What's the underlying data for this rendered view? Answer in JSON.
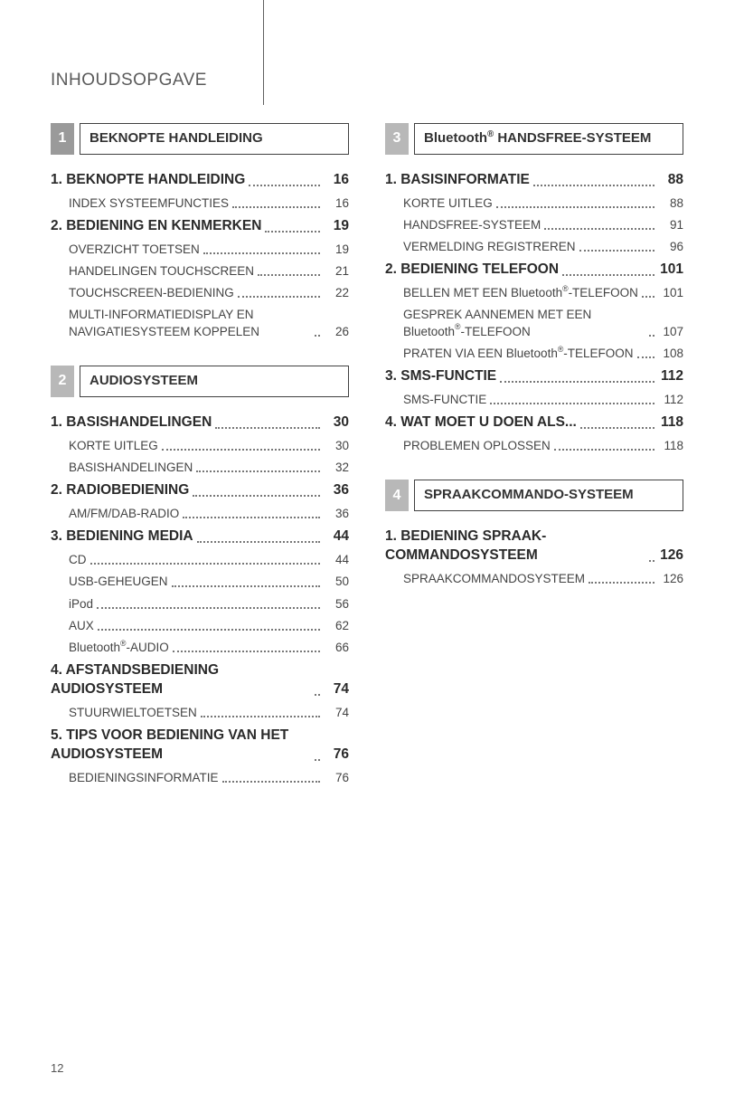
{
  "page_title": "INHOUDSOPGAVE",
  "page_number": "12",
  "left": {
    "s1": {
      "num": "1",
      "title": "BEKNOPTE HANDLEIDING",
      "items": [
        {
          "label": "1. BEKNOPTE HANDLEIDING",
          "page": "16",
          "bold": true
        },
        {
          "label": "INDEX SYSTEEMFUNCTIES",
          "page": "16"
        },
        {
          "label": "2. BEDIENING EN KENMERKEN",
          "page": "19",
          "bold": true
        },
        {
          "label": "OVERZICHT TOETSEN",
          "page": "19"
        },
        {
          "label": "HANDELINGEN TOUCHSCREEN",
          "page": "21"
        },
        {
          "label": "TOUCHSCREEN-BEDIENING",
          "page": "22"
        },
        {
          "label": "MULTI-INFORMATIEDISPLAY EN NAVIGATIESYSTEEM KOPPELEN",
          "page": "26",
          "wrap": true
        }
      ]
    },
    "s2": {
      "num": "2",
      "title": "AUDIOSYSTEEM",
      "items": [
        {
          "label": "1. BASISHANDELINGEN",
          "page": "30",
          "bold": true
        },
        {
          "label": "KORTE UITLEG",
          "page": "30"
        },
        {
          "label": "BASISHANDELINGEN",
          "page": "32"
        },
        {
          "label": "2. RADIOBEDIENING",
          "page": "36",
          "bold": true
        },
        {
          "label": "AM/FM/DAB-RADIO",
          "page": "36"
        },
        {
          "label": "3. BEDIENING MEDIA",
          "page": "44",
          "bold": true
        },
        {
          "label": "CD",
          "page": "44"
        },
        {
          "label": "USB-GEHEUGEN",
          "page": "50"
        },
        {
          "label": "iPod",
          "page": "56"
        },
        {
          "label": "AUX",
          "page": "62"
        },
        {
          "label": "Bluetooth®-AUDIO",
          "page": "66",
          "reg": true
        },
        {
          "label": "4. AFSTANDSBEDIENING AUDIOSYSTEEM",
          "page": "74",
          "bold": true,
          "wrap": true
        },
        {
          "label": "STUURWIELTOETSEN",
          "page": "74"
        },
        {
          "label": "5. TIPS VOOR BEDIENING VAN HET AUDIOSYSTEEM",
          "page": "76",
          "bold": true,
          "wrap": true
        },
        {
          "label": "BEDIENINGSINFORMATIE",
          "page": "76"
        }
      ]
    }
  },
  "right": {
    "s3": {
      "num": "3",
      "title_pre": "Bluetooth",
      "title_post": " HANDSFREE-SYSTEEM",
      "items": [
        {
          "label": "1. BASISINFORMATIE",
          "page": "88",
          "bold": true
        },
        {
          "label": "KORTE UITLEG",
          "page": "88"
        },
        {
          "label": "HANDSFREE-SYSTEEM",
          "page": "91"
        },
        {
          "label": "VERMELDING REGISTREREN",
          "page": "96"
        },
        {
          "label": "2. BEDIENING TELEFOON",
          "page": "101",
          "bold": true
        },
        {
          "label": "BELLEN MET EEN Bluetooth®-TELEFOON",
          "page": "101",
          "wrap": true,
          "reg": true
        },
        {
          "label": "GESPREK AANNEMEN MET EEN Bluetooth®-TELEFOON",
          "page": "107",
          "wrap": true,
          "reg": true
        },
        {
          "label": "PRATEN VIA EEN Bluetooth®-TELEFOON",
          "page": "108",
          "wrap": true,
          "reg": true
        },
        {
          "label": "3. SMS-FUNCTIE",
          "page": "112",
          "bold": true
        },
        {
          "label": "SMS-FUNCTIE",
          "page": "112"
        },
        {
          "label": "4. WAT MOET U DOEN ALS...",
          "page": "118",
          "bold": true
        },
        {
          "label": "PROBLEMEN OPLOSSEN",
          "page": "118"
        }
      ]
    },
    "s4": {
      "num": "4",
      "title": "SPRAAKCOMMANDO-SYSTEEM",
      "items": [
        {
          "label": "1. BEDIENING SPRAAK-COMMANDOSYSTEEM",
          "page": "126",
          "bold": true,
          "wrap": true
        },
        {
          "label": "SPRAAKCOMMANDOSYSTEEM",
          "page": "126"
        }
      ]
    }
  }
}
